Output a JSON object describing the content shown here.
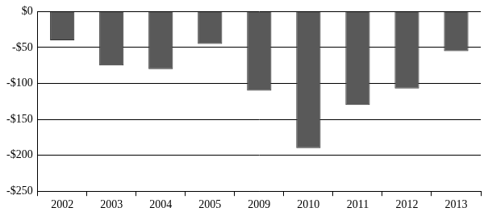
{
  "chart_data": {
    "type": "bar",
    "categories": [
      "2002",
      "2003",
      "2004",
      "2005",
      "2009",
      "2010",
      "2011",
      "2012",
      "2013"
    ],
    "values": [
      -40,
      -75,
      -80,
      -45,
      -110,
      -190,
      -130,
      -107,
      -55
    ],
    "color": "#595959",
    "ylim": [
      -250,
      0
    ],
    "yticks": [
      {
        "value": -250,
        "label": "-$250"
      },
      {
        "value": -200,
        "label": "-$200"
      },
      {
        "value": -150,
        "label": "-$150"
      },
      {
        "value": -100,
        "label": "-$100"
      },
      {
        "value": -50,
        "label": "-$50"
      },
      {
        "value": 0,
        "label": "$0"
      }
    ],
    "grid": true
  }
}
